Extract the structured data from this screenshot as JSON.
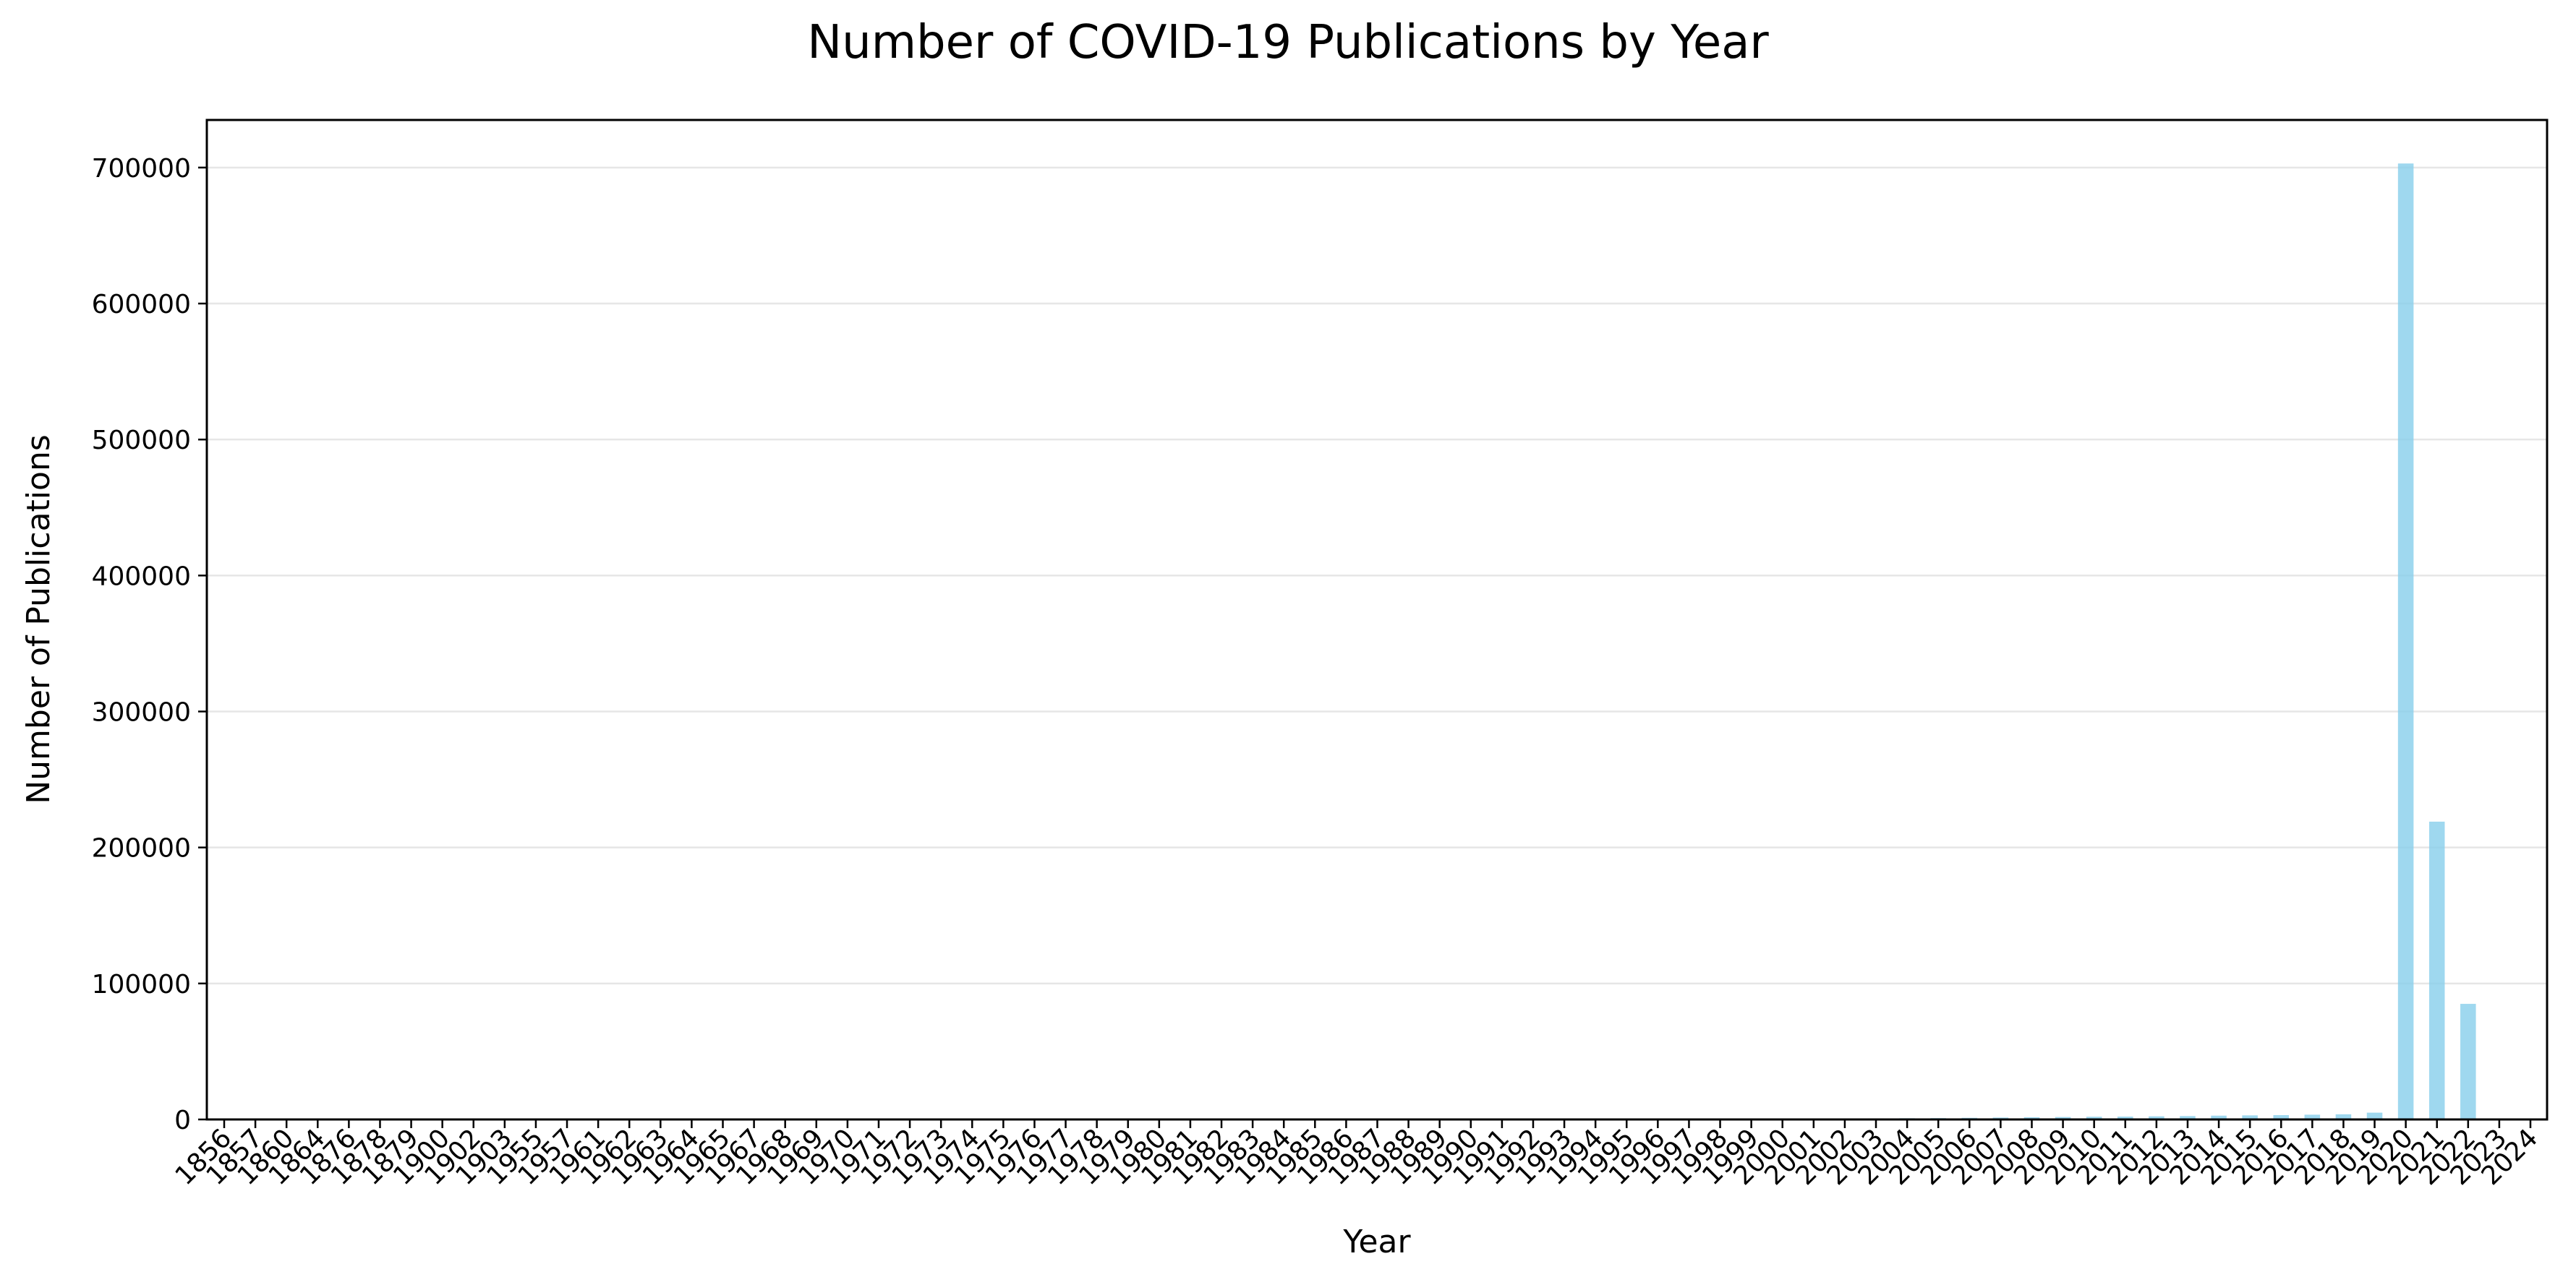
{
  "chart_data": {
    "type": "bar",
    "title": "Number of COVID-19 Publications by Year",
    "xlabel": "Year",
    "ylabel": "Number of Publications",
    "ylim": [
      0,
      735000
    ],
    "yticks": [
      0,
      100000,
      200000,
      300000,
      400000,
      500000,
      600000,
      700000
    ],
    "grid": "horizontal",
    "bar_color": "#87ceeb",
    "categories": [
      "1856",
      "1857",
      "1860",
      "1864",
      "1876",
      "1878",
      "1879",
      "1900",
      "1902",
      "1903",
      "1955",
      "1957",
      "1961",
      "1962",
      "1963",
      "1964",
      "1965",
      "1967",
      "1968",
      "1969",
      "1970",
      "1971",
      "1972",
      "1973",
      "1974",
      "1975",
      "1976",
      "1977",
      "1978",
      "1979",
      "1980",
      "1981",
      "1982",
      "1983",
      "1984",
      "1985",
      "1986",
      "1987",
      "1988",
      "1989",
      "1990",
      "1991",
      "1992",
      "1993",
      "1994",
      "1995",
      "1996",
      "1997",
      "1998",
      "1999",
      "2000",
      "2001",
      "2002",
      "2003",
      "2004",
      "2005",
      "2006",
      "2007",
      "2008",
      "2009",
      "2010",
      "2011",
      "2012",
      "2013",
      "2014",
      "2015",
      "2016",
      "2017",
      "2018",
      "2019",
      "2020",
      "2021",
      "2022",
      "2023",
      "2024"
    ],
    "values": [
      1,
      1,
      1,
      1,
      1,
      1,
      1,
      1,
      1,
      1,
      1,
      1,
      1,
      1,
      1,
      1,
      2,
      2,
      3,
      3,
      5,
      5,
      5,
      10,
      10,
      15,
      20,
      25,
      30,
      35,
      40,
      50,
      60,
      70,
      80,
      100,
      110,
      120,
      140,
      160,
      180,
      200,
      220,
      260,
      300,
      330,
      360,
      400,
      450,
      500,
      550,
      600,
      700,
      800,
      900,
      1000,
      1200,
      1400,
      1600,
      1800,
      2000,
      2100,
      2300,
      2500,
      2800,
      3000,
      3200,
      3500,
      3800,
      5000,
      703000,
      219000,
      85000,
      500,
      10
    ]
  }
}
